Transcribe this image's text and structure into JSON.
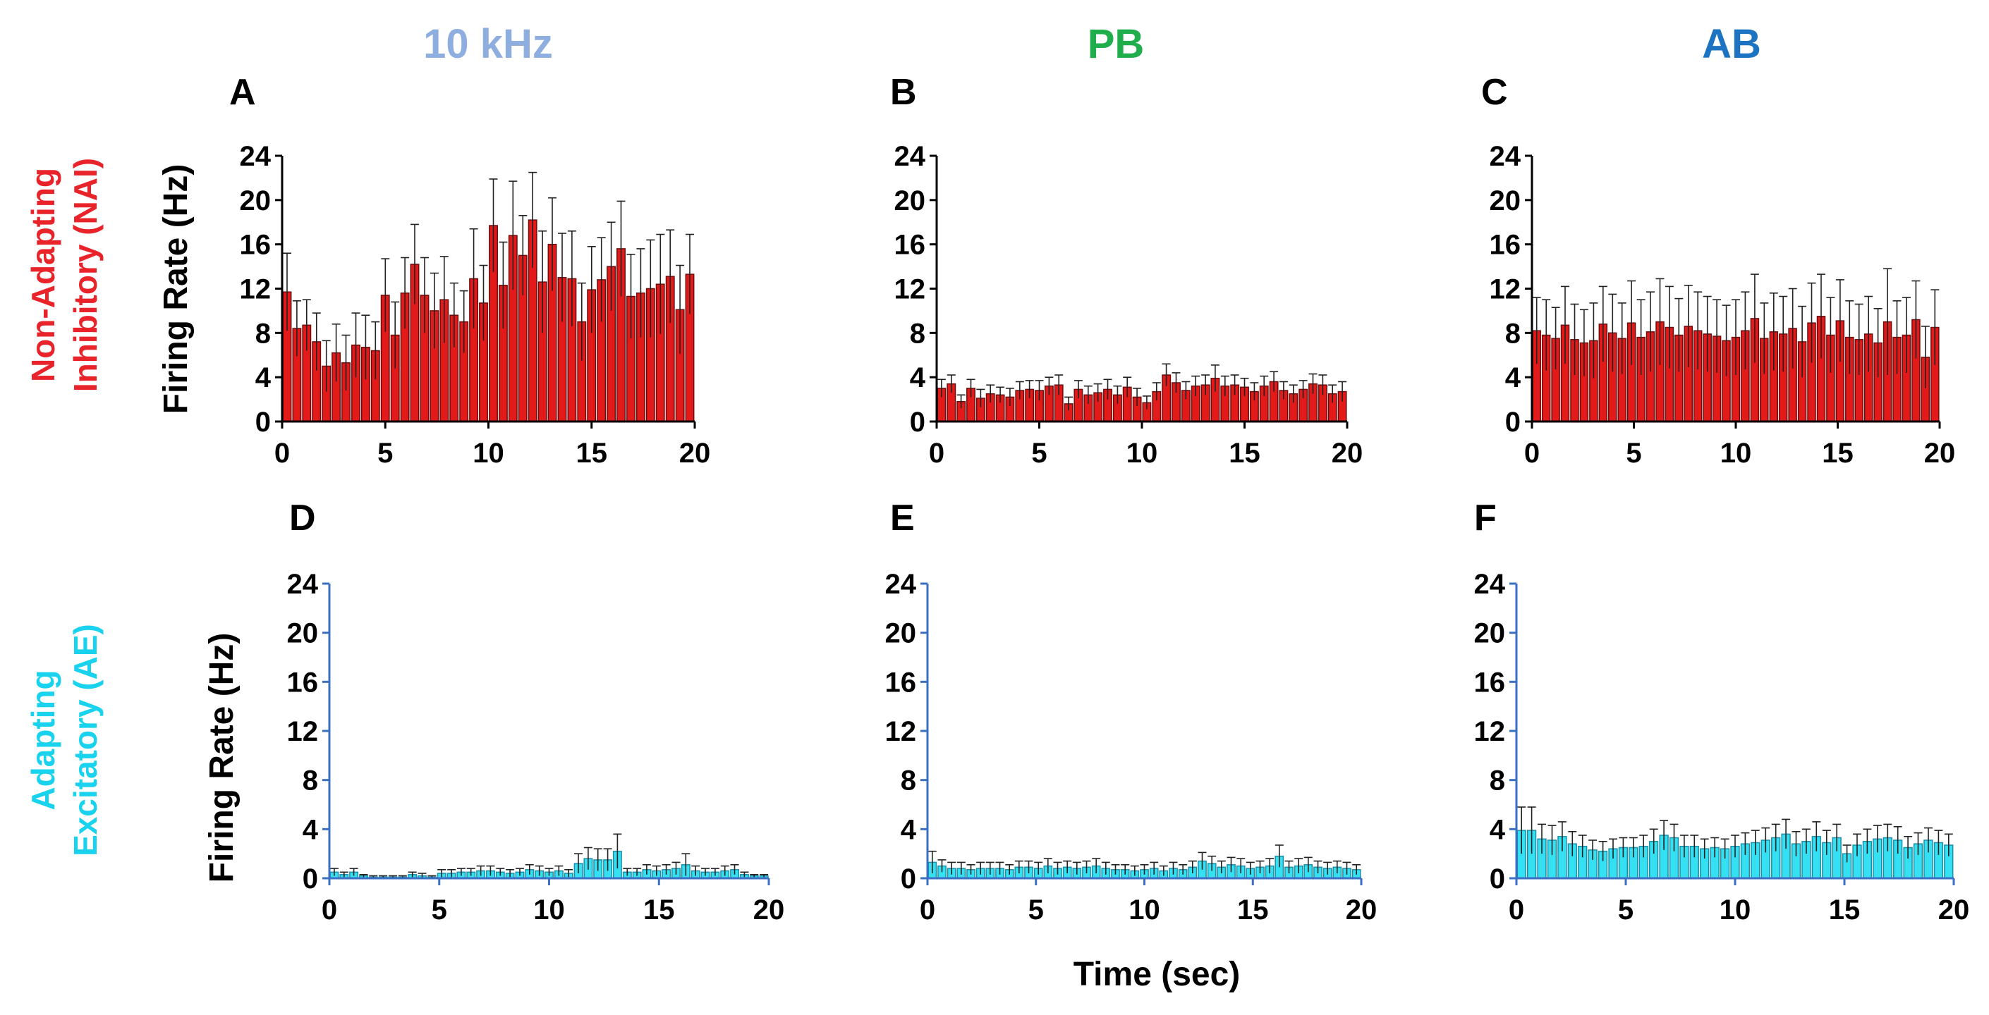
{
  "column_headers": [
    {
      "text": "10 kHz",
      "color": "#8FAEE0"
    },
    {
      "text": "PB",
      "color": "#1FAE4B"
    },
    {
      "text": "AB",
      "color": "#1C73C2"
    }
  ],
  "row_labels": [
    {
      "line1": "Non-Adapting",
      "line2": "Inhibitory (NAI)",
      "color": "#E8232A"
    },
    {
      "line1": "Adapting",
      "line2": "Excitatory (AE)",
      "color": "#19D3EE"
    }
  ],
  "ylabel": "Firing Rate (Hz)",
  "xlabel": "Time (sec)",
  "chart_data": [
    {
      "panel": "A",
      "type": "bar",
      "row": 0,
      "col": 0,
      "color": "#E31A1A",
      "ylim": [
        0,
        24
      ],
      "xlim": [
        0,
        20
      ],
      "yticks": [
        0,
        4,
        8,
        12,
        16,
        20,
        24
      ],
      "xticks": [
        0,
        5,
        10,
        15,
        20
      ],
      "values": [
        11.7,
        8.4,
        8.7,
        7.2,
        5.0,
        6.2,
        5.3,
        6.9,
        6.7,
        6.4,
        11.4,
        7.8,
        11.6,
        14.2,
        11.4,
        10.0,
        11.0,
        9.6,
        9.0,
        12.9,
        10.7,
        17.7,
        12.3,
        16.8,
        15.0,
        18.2,
        12.6,
        16.0,
        13.0,
        12.9,
        9.0,
        11.9,
        12.8,
        14.0,
        15.6,
        11.3,
        11.6,
        12.0,
        12.4,
        13.1,
        10.1,
        13.3
      ],
      "errors": [
        3.5,
        2.5,
        2.3,
        2.6,
        2.3,
        2.6,
        2.5,
        2.9,
        2.9,
        2.6,
        3.3,
        3.0,
        3.2,
        3.6,
        3.4,
        3.4,
        3.9,
        2.9,
        2.8,
        4.5,
        3.4,
        4.2,
        3.9,
        4.9,
        3.6,
        4.3,
        4.6,
        4.2,
        4.0,
        4.3,
        3.5,
        3.9,
        3.8,
        4.0,
        4.3,
        3.8,
        4.0,
        4.4,
        4.5,
        4.2,
        4.0,
        3.6
      ]
    },
    {
      "panel": "B",
      "type": "bar",
      "row": 0,
      "col": 1,
      "color": "#E31A1A",
      "ylim": [
        0,
        24
      ],
      "xlim": [
        0,
        20
      ],
      "yticks": [
        0,
        4,
        8,
        12,
        16,
        20,
        24
      ],
      "xticks": [
        0,
        5,
        10,
        15,
        20
      ],
      "values": [
        3.0,
        3.4,
        1.8,
        3.0,
        2.1,
        2.5,
        2.4,
        2.2,
        2.8,
        2.9,
        2.8,
        3.2,
        3.3,
        1.6,
        2.9,
        2.4,
        2.6,
        2.9,
        2.4,
        3.1,
        2.2,
        1.7,
        2.7,
        4.2,
        3.5,
        2.8,
        3.2,
        3.3,
        3.9,
        3.2,
        3.3,
        3.1,
        2.7,
        3.2,
        3.6,
        2.8,
        2.5,
        2.9,
        3.4,
        3.3,
        2.5,
        2.7
      ],
      "errors": [
        0.8,
        0.8,
        0.6,
        0.8,
        0.8,
        0.8,
        0.7,
        0.8,
        0.8,
        0.8,
        0.9,
        0.8,
        0.9,
        0.6,
        0.8,
        0.8,
        0.8,
        0.9,
        0.8,
        0.9,
        0.8,
        0.6,
        0.8,
        1.0,
        0.9,
        0.8,
        0.9,
        0.9,
        1.2,
        0.9,
        0.9,
        0.8,
        0.8,
        0.9,
        0.9,
        0.8,
        0.8,
        0.8,
        0.9,
        0.9,
        0.8,
        0.9
      ]
    },
    {
      "panel": "C",
      "type": "bar",
      "row": 0,
      "col": 2,
      "color": "#E31A1A",
      "ylim": [
        0,
        24
      ],
      "xlim": [
        0,
        20
      ],
      "yticks": [
        0,
        4,
        8,
        12,
        16,
        20,
        24
      ],
      "xticks": [
        0,
        5,
        10,
        15,
        20
      ],
      "values": [
        8.2,
        7.8,
        7.5,
        8.7,
        7.4,
        7.1,
        7.3,
        8.8,
        8.0,
        7.5,
        8.9,
        7.6,
        8.1,
        9.0,
        8.5,
        7.8,
        8.6,
        8.2,
        7.9,
        7.7,
        7.3,
        7.6,
        8.2,
        9.3,
        7.5,
        8.1,
        7.9,
        8.4,
        7.2,
        8.9,
        9.5,
        7.8,
        9.1,
        7.6,
        7.4,
        7.9,
        7.1,
        9.0,
        7.6,
        7.8,
        9.2,
        5.8,
        8.5
      ],
      "errors": [
        3.0,
        3.2,
        2.8,
        3.5,
        3.2,
        3.0,
        3.4,
        3.4,
        3.5,
        3.2,
        3.8,
        3.4,
        3.6,
        3.9,
        3.7,
        3.3,
        3.7,
        3.5,
        3.4,
        3.3,
        3.2,
        3.4,
        3.5,
        4.0,
        3.2,
        3.5,
        3.4,
        3.6,
        3.2,
        3.6,
        3.8,
        3.4,
        3.7,
        3.3,
        3.2,
        3.4,
        3.1,
        4.8,
        3.3,
        3.4,
        3.5,
        2.8,
        3.4
      ]
    },
    {
      "panel": "D",
      "type": "bar",
      "row": 1,
      "col": 0,
      "color": "#35E0F2",
      "ylim": [
        0,
        24
      ],
      "xlim": [
        0,
        20
      ],
      "yticks": [
        0,
        4,
        8,
        12,
        16,
        20,
        24
      ],
      "xticks": [
        0,
        5,
        10,
        15,
        20
      ],
      "values": [
        0.5,
        0.3,
        0.5,
        0.2,
        0.1,
        0.1,
        0.1,
        0.1,
        0.3,
        0.2,
        0.1,
        0.4,
        0.4,
        0.5,
        0.5,
        0.6,
        0.6,
        0.5,
        0.4,
        0.5,
        0.7,
        0.6,
        0.5,
        0.6,
        0.4,
        1.2,
        1.6,
        1.5,
        1.5,
        2.2,
        0.5,
        0.5,
        0.7,
        0.6,
        0.7,
        0.8,
        1.1,
        0.6,
        0.5,
        0.5,
        0.6,
        0.7,
        0.3,
        0.2,
        0.2
      ],
      "errors": [
        0.3,
        0.2,
        0.3,
        0.1,
        0.1,
        0.1,
        0.1,
        0.1,
        0.2,
        0.2,
        0.1,
        0.3,
        0.3,
        0.3,
        0.3,
        0.4,
        0.4,
        0.3,
        0.3,
        0.3,
        0.4,
        0.4,
        0.3,
        0.4,
        0.3,
        0.8,
        0.9,
        0.9,
        0.9,
        1.4,
        0.3,
        0.3,
        0.4,
        0.4,
        0.4,
        0.5,
        0.9,
        0.4,
        0.3,
        0.3,
        0.4,
        0.4,
        0.2,
        0.1,
        0.1
      ]
    },
    {
      "panel": "E",
      "type": "bar",
      "row": 1,
      "col": 1,
      "color": "#35E0F2",
      "ylim": [
        0,
        24
      ],
      "xlim": [
        0,
        20
      ],
      "yticks": [
        0,
        4,
        8,
        12,
        16,
        20,
        24
      ],
      "xticks": [
        0,
        5,
        10,
        15,
        20
      ],
      "values": [
        1.3,
        1.0,
        0.8,
        0.8,
        0.7,
        0.8,
        0.8,
        0.8,
        0.7,
        0.9,
        0.9,
        0.8,
        1.0,
        0.8,
        0.9,
        0.8,
        0.9,
        1.0,
        0.8,
        0.7,
        0.7,
        0.6,
        0.7,
        0.8,
        0.6,
        0.8,
        0.7,
        0.9,
        1.4,
        1.2,
        0.9,
        1.1,
        1.0,
        0.8,
        0.9,
        1.0,
        1.8,
        0.9,
        1.0,
        1.1,
        0.9,
        0.8,
        0.9,
        0.8,
        0.7
      ],
      "errors": [
        0.9,
        0.5,
        0.5,
        0.5,
        0.4,
        0.5,
        0.5,
        0.5,
        0.4,
        0.5,
        0.5,
        0.5,
        0.6,
        0.5,
        0.5,
        0.5,
        0.5,
        0.6,
        0.5,
        0.4,
        0.4,
        0.4,
        0.4,
        0.5,
        0.4,
        0.5,
        0.4,
        0.5,
        0.7,
        0.6,
        0.5,
        0.6,
        0.6,
        0.5,
        0.5,
        0.6,
        0.9,
        0.5,
        0.6,
        0.6,
        0.5,
        0.5,
        0.5,
        0.5,
        0.4
      ]
    },
    {
      "panel": "F",
      "type": "bar",
      "row": 1,
      "col": 2,
      "color": "#35E0F2",
      "ylim": [
        0,
        24
      ],
      "xlim": [
        0,
        20
      ],
      "yticks": [
        0,
        4,
        8,
        12,
        16,
        20,
        24
      ],
      "xticks": [
        0,
        5,
        10,
        15,
        20
      ],
      "values": [
        3.9,
        3.9,
        3.2,
        3.1,
        3.4,
        2.8,
        2.6,
        2.3,
        2.2,
        2.4,
        2.5,
        2.5,
        2.6,
        3.0,
        3.5,
        3.3,
        2.6,
        2.6,
        2.4,
        2.5,
        2.4,
        2.6,
        2.8,
        2.9,
        3.1,
        3.3,
        3.6,
        2.8,
        3.0,
        3.4,
        2.9,
        3.3,
        2.0,
        2.7,
        3.0,
        3.2,
        3.3,
        3.1,
        2.5,
        2.8,
        3.1,
        2.9,
        2.7
      ],
      "errors": [
        1.9,
        1.9,
        1.2,
        1.2,
        1.2,
        1.0,
        0.9,
        0.8,
        0.8,
        0.8,
        0.8,
        0.8,
        0.9,
        1.0,
        1.2,
        1.1,
        0.9,
        0.9,
        0.8,
        0.8,
        0.8,
        0.9,
        0.9,
        1.0,
        1.0,
        1.1,
        1.2,
        1.0,
        1.0,
        1.2,
        1.0,
        1.1,
        0.7,
        0.9,
        1.0,
        1.1,
        1.1,
        1.1,
        0.9,
        0.9,
        1.0,
        1.0,
        0.9
      ]
    }
  ]
}
